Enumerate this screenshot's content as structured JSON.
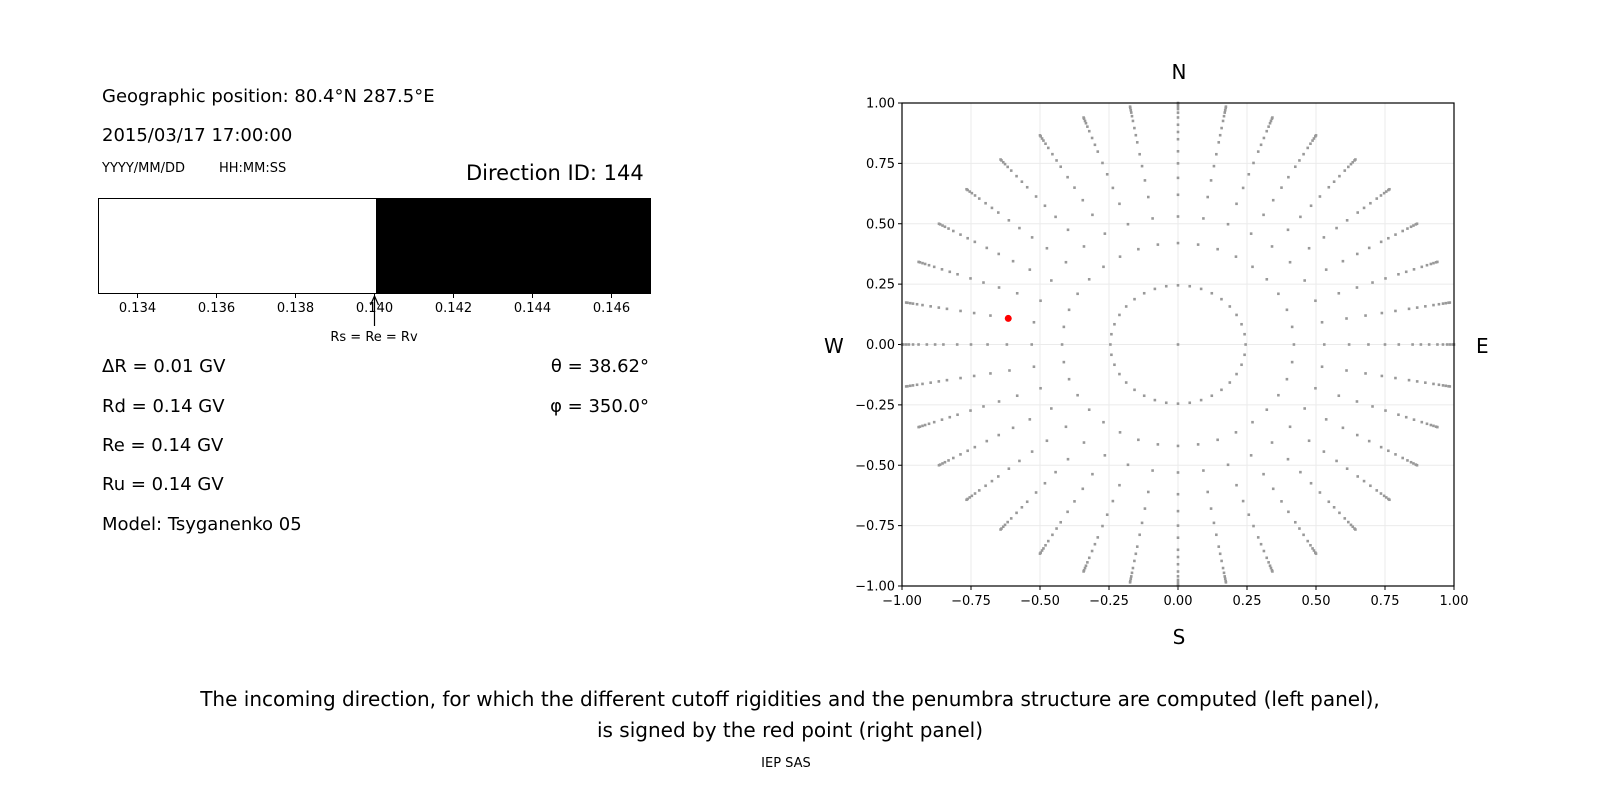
{
  "left_panel": {
    "geo_position": "Geographic position: 80.4°N 287.5°E",
    "datetime": "2015/03/17 17:00:00",
    "date_format": "YYYY/MM/DD",
    "time_format": "HH:MM:SS",
    "direction_id": "Direction ID: 144",
    "delta_r": "ΔR = 0.01 GV",
    "rd": "Rd = 0.14 GV",
    "re": "Re = 0.14 GV",
    "ru": "Ru = 0.14 GV",
    "model": "Model: Tsyganenko 05",
    "theta": "θ = 38.62°",
    "phi": "φ = 350.0°"
  },
  "chart_data": [
    {
      "type": "bar",
      "description_label": "Rs = Re = Rv",
      "xlim": [
        0.133,
        0.147
      ],
      "xticks": [
        "0.134",
        "0.136",
        "0.138",
        "0.140",
        "0.142",
        "0.144",
        "0.146"
      ],
      "segments": [
        {
          "from": 0.133,
          "to": 0.14,
          "color": "#ffffff"
        },
        {
          "from": 0.14,
          "to": 0.147,
          "color": "#000000"
        }
      ],
      "arrow_at": 0.14
    },
    {
      "type": "scatter",
      "xlim": [
        -1,
        1
      ],
      "ylim": [
        -1,
        1
      ],
      "xticks": [
        "−1.00",
        "−0.75",
        "−0.50",
        "−0.25",
        "0.00",
        "0.25",
        "0.50",
        "0.75",
        "1.00"
      ],
      "yticks": [
        "1.00",
        "0.75",
        "0.50",
        "0.25",
        "0.00",
        "−0.25",
        "−0.50",
        "−0.75",
        "−1.00"
      ],
      "grid": true,
      "compass": {
        "north": "N",
        "south": "S",
        "west": "W",
        "east": "E"
      },
      "point_color": "#999999",
      "highlight_color": "#ff0000",
      "center_point": [
        0,
        0
      ],
      "azimuth_step_deg": 10,
      "radii": [
        0.245,
        0.42,
        0.53,
        0.62,
        0.69,
        0.75,
        0.8,
        0.85,
        0.88,
        0.91,
        0.94,
        0.96,
        0.975,
        0.985,
        0.995,
        1.0
      ],
      "highlight_point": [
        -0.615,
        0.108
      ]
    }
  ],
  "caption": {
    "line1": "The incoming direction, for which the different cutoff rigidities and the penumbra structure are computed (left panel),",
    "line2": "is signed by the red point (right panel)"
  },
  "footer": "IEP SAS"
}
